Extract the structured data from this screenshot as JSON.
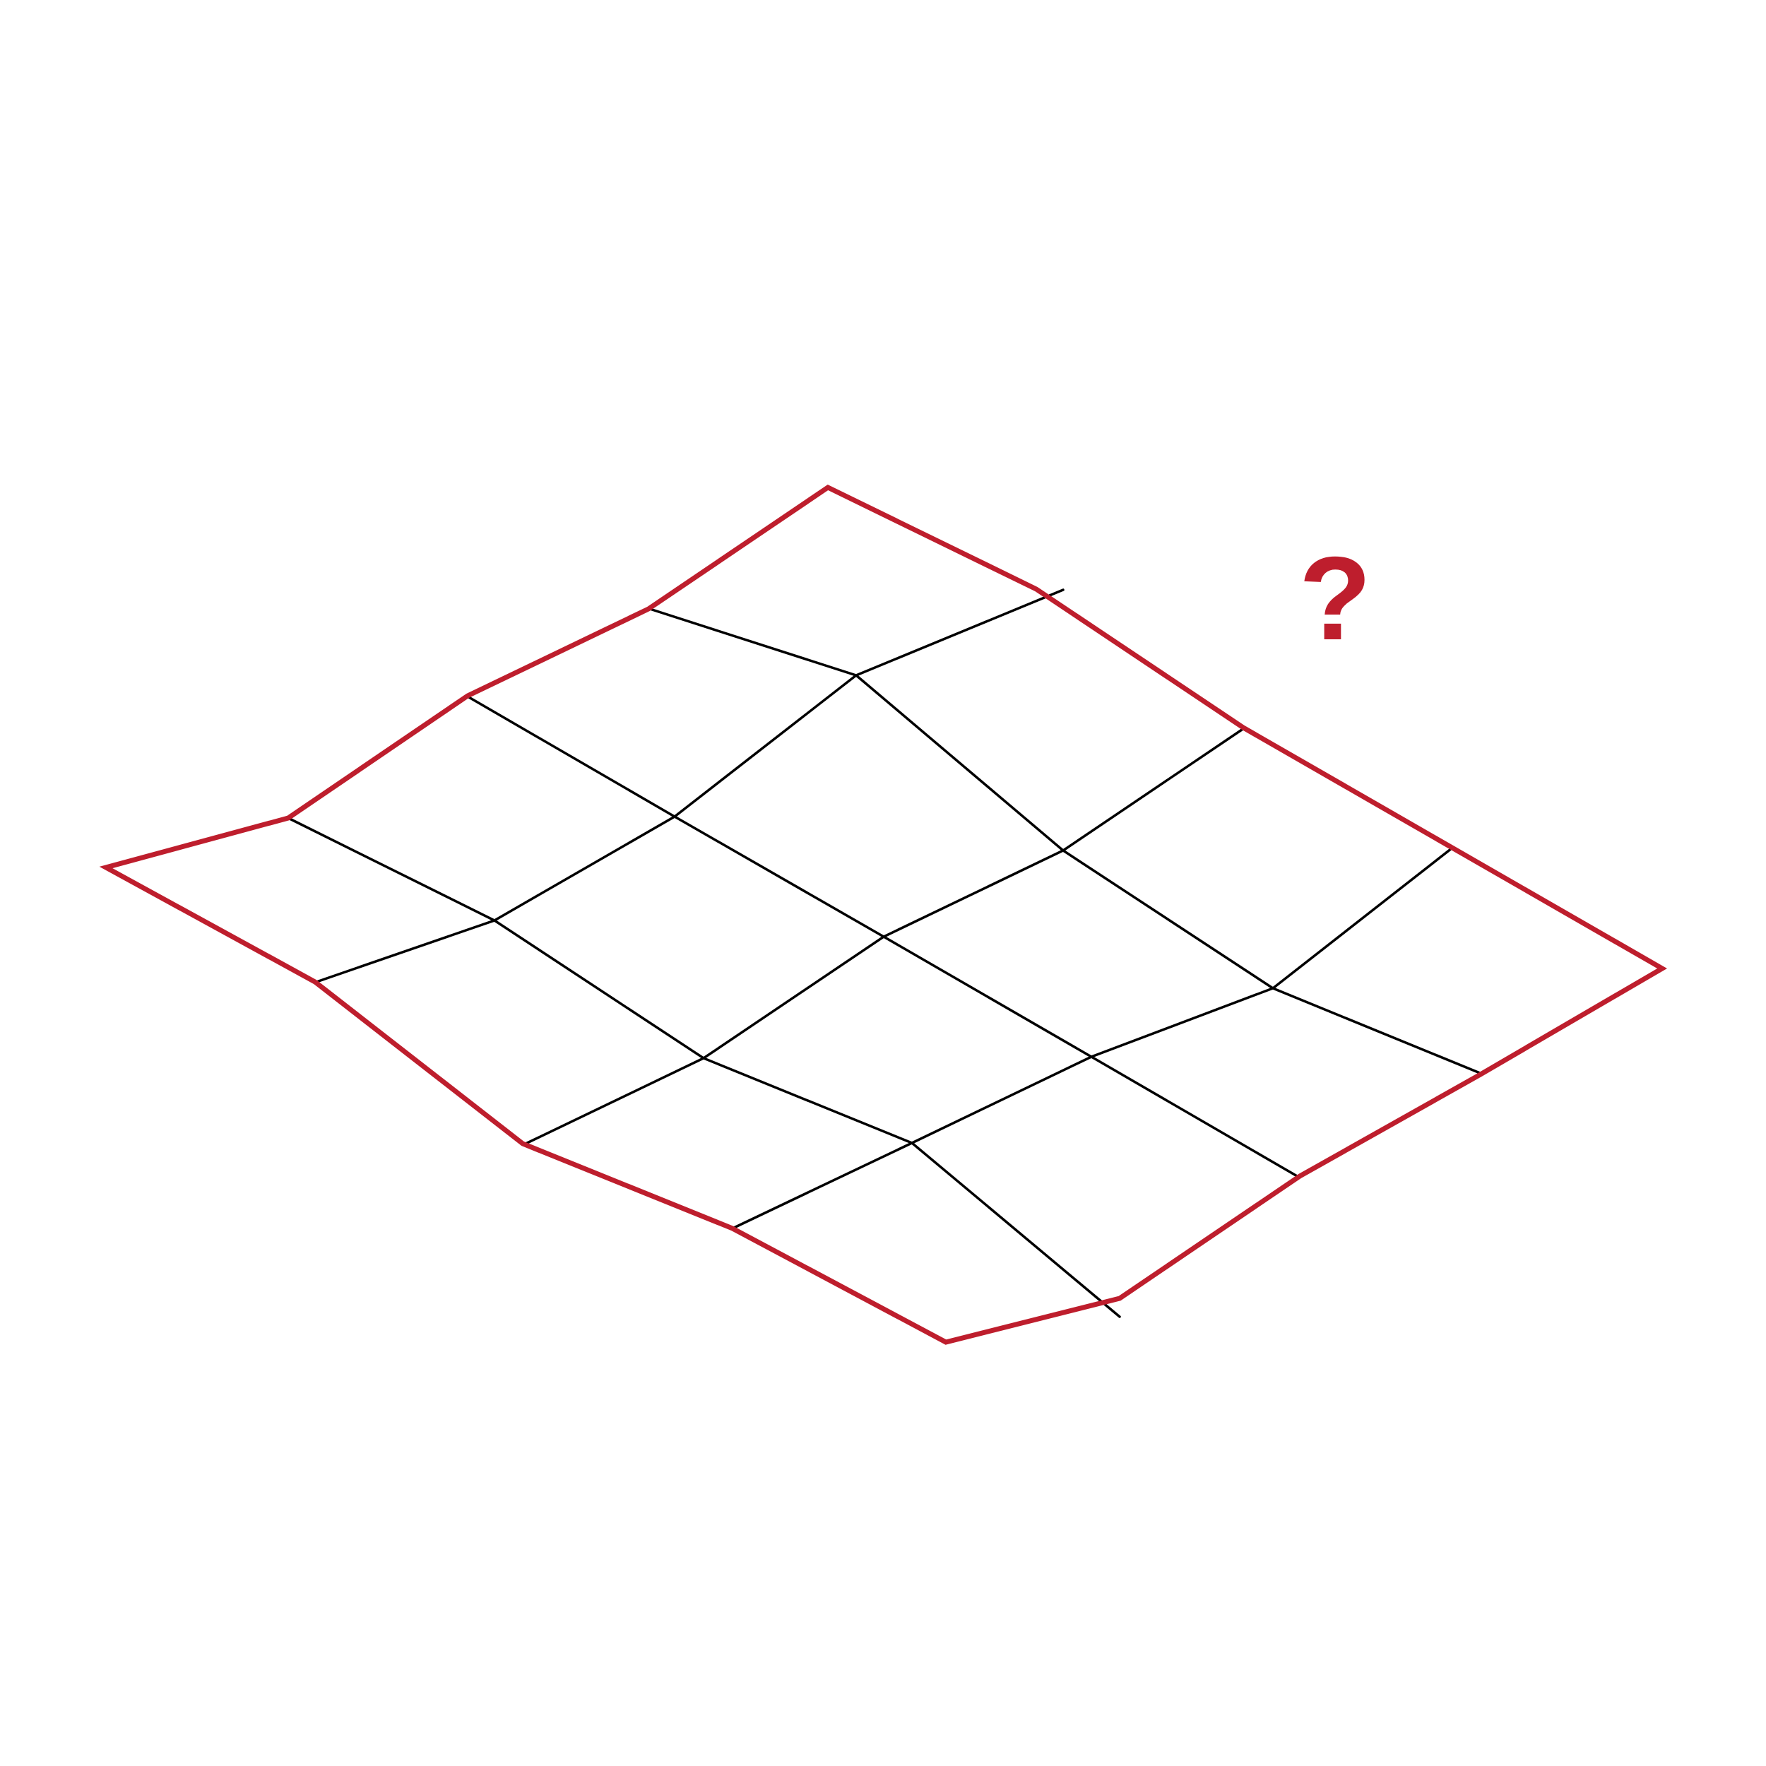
{
  "diagram": {
    "annotation": "?",
    "colors": {
      "outline": "#be1e2d",
      "grid": "#000000",
      "annotation": "#be1e2d",
      "background": "#ffffff"
    }
  }
}
